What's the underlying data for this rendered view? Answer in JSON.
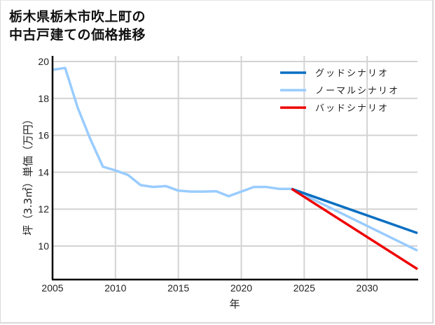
{
  "title": {
    "line1": "栃木県栃木市吹上町の",
    "line2": "中古戸建ての価格推移"
  },
  "colors": {
    "good": "#0a6fc2",
    "normal": "#99ccff",
    "bad": "#ee0000",
    "grid": "#d3d3d3",
    "axis": "#000000"
  },
  "chart_data": {
    "type": "line",
    "title": "栃木県栃木市吹上町の中古戸建ての価格推移",
    "xlabel": "年",
    "ylabel": "坪（3.3㎡）単価（万円）",
    "xlim": [
      2005,
      2034
    ],
    "ylim": [
      8.2,
      20.2
    ],
    "xticks": [
      2005,
      2010,
      2015,
      2020,
      2025,
      2030
    ],
    "yticks": [
      10,
      12,
      14,
      16,
      18,
      20
    ],
    "grid": true,
    "legend_position": "upper right",
    "series": [
      {
        "name": "グッドシナリオ",
        "color": "#0a6fc2",
        "x": [
          2024,
          2034
        ],
        "values": [
          13.1,
          10.7
        ]
      },
      {
        "name": "ノーマルシナリオ",
        "color": "#99ccff",
        "x": [
          2005,
          2006,
          2007,
          2008,
          2009,
          2010,
          2011,
          2012,
          2013,
          2014,
          2015,
          2016,
          2017,
          2018,
          2019,
          2020,
          2021,
          2022,
          2023,
          2024,
          2034
        ],
        "values": [
          19.55,
          19.65,
          17.5,
          15.8,
          14.3,
          14.1,
          13.85,
          13.3,
          13.2,
          13.25,
          13.0,
          12.95,
          12.95,
          12.97,
          12.7,
          12.95,
          13.2,
          13.2,
          13.1,
          13.1,
          9.75
        ]
      },
      {
        "name": "バッドシナリオ",
        "color": "#ee0000",
        "x": [
          2024,
          2034
        ],
        "values": [
          13.1,
          8.75
        ]
      }
    ]
  },
  "legend": [
    {
      "label": "グッドシナリオ",
      "color": "#0a6fc2"
    },
    {
      "label": "ノーマルシナリオ",
      "color": "#99ccff"
    },
    {
      "label": "バッドシナリオ",
      "color": "#ee0000"
    }
  ],
  "axes": {
    "xlabel": "年",
    "ylabel": "坪（3.3㎡）単価（万円）",
    "xtick_labels": [
      "2005",
      "2010",
      "2015",
      "2020",
      "2025",
      "2030"
    ],
    "ytick_labels": [
      "10",
      "12",
      "14",
      "16",
      "18",
      "20"
    ]
  }
}
